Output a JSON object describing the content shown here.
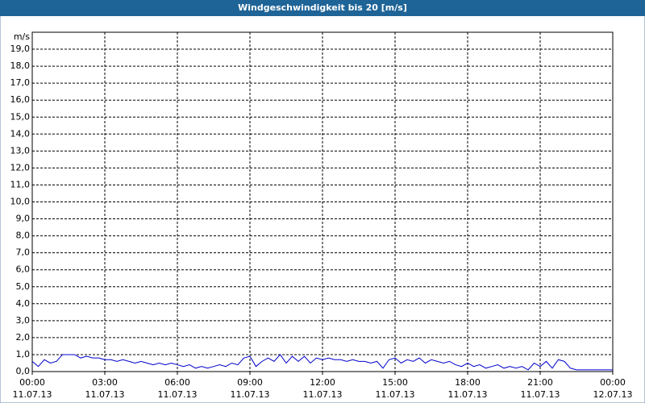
{
  "chart_data": {
    "type": "line",
    "title": "Windgeschwindigkeit bis 20 [m/s]",
    "y_label": "m/s",
    "ylim": [
      0,
      20
    ],
    "yticks": [
      {
        "value": 0,
        "label": "0,0"
      },
      {
        "value": 1,
        "label": "1,0"
      },
      {
        "value": 2,
        "label": "2,0"
      },
      {
        "value": 3,
        "label": "3,0"
      },
      {
        "value": 4,
        "label": "4,0"
      },
      {
        "value": 5,
        "label": "5,0"
      },
      {
        "value": 6,
        "label": "6,0"
      },
      {
        "value": 7,
        "label": "7,0"
      },
      {
        "value": 8,
        "label": "8,0"
      },
      {
        "value": 9,
        "label": "9,0"
      },
      {
        "value": 10,
        "label": "10,0"
      },
      {
        "value": 11,
        "label": "11,0"
      },
      {
        "value": 12,
        "label": "12,0"
      },
      {
        "value": 13,
        "label": "13,0"
      },
      {
        "value": 14,
        "label": "14,0"
      },
      {
        "value": 15,
        "label": "15,0"
      },
      {
        "value": 16,
        "label": "16,0"
      },
      {
        "value": 17,
        "label": "17,0"
      },
      {
        "value": 18,
        "label": "18,0"
      },
      {
        "value": 19,
        "label": "19,0"
      }
    ],
    "xlim": [
      0,
      24
    ],
    "xticks": [
      {
        "value": 0,
        "label": "00:00"
      },
      {
        "value": 3,
        "label": "03:00"
      },
      {
        "value": 6,
        "label": "06:00"
      },
      {
        "value": 9,
        "label": "09:00"
      },
      {
        "value": 12,
        "label": "12:00"
      },
      {
        "value": 15,
        "label": "15:00"
      },
      {
        "value": 18,
        "label": "18:00"
      },
      {
        "value": 21,
        "label": "21:00"
      },
      {
        "value": 24,
        "label": "00:00"
      }
    ],
    "xtick_dates": [
      "11.07.13",
      "11.07.13",
      "11.07.13",
      "11.07.13",
      "11.07.13",
      "11.07.13",
      "11.07.13",
      "11.07.13",
      "12.07.13"
    ],
    "grid": true,
    "x": [
      0,
      0.25,
      0.5,
      0.75,
      1,
      1.25,
      1.5,
      1.75,
      2,
      2.25,
      2.5,
      2.75,
      3,
      3.25,
      3.5,
      3.75,
      4,
      4.25,
      4.5,
      4.75,
      5,
      5.25,
      5.5,
      5.75,
      6,
      6.25,
      6.5,
      6.75,
      7,
      7.25,
      7.5,
      7.75,
      8,
      8.25,
      8.5,
      8.75,
      9,
      9.25,
      9.5,
      9.75,
      10,
      10.25,
      10.5,
      10.75,
      11,
      11.25,
      11.5,
      11.75,
      12,
      12.25,
      12.5,
      12.75,
      13,
      13.25,
      13.5,
      13.75,
      14,
      14.25,
      14.5,
      14.75,
      15,
      15.25,
      15.5,
      15.75,
      16,
      16.25,
      16.5,
      16.75,
      17,
      17.25,
      17.5,
      17.75,
      18,
      18.25,
      18.5,
      18.75,
      19,
      19.25,
      19.5,
      19.75,
      20,
      20.25,
      20.5,
      20.75,
      21,
      21.25,
      21.5,
      21.75,
      22,
      22.25,
      22.5,
      22.75,
      23,
      23.25,
      23.5,
      23.75,
      24
    ],
    "series": [
      {
        "color": "#0000cc",
        "values": [
          0.6,
          0.3,
          0.7,
          0.5,
          0.6,
          1.0,
          1.0,
          1.0,
          0.8,
          0.9,
          0.8,
          0.8,
          0.7,
          0.7,
          0.6,
          0.7,
          0.6,
          0.5,
          0.6,
          0.5,
          0.4,
          0.5,
          0.4,
          0.5,
          0.4,
          0.3,
          0.4,
          0.2,
          0.3,
          0.2,
          0.3,
          0.4,
          0.3,
          0.5,
          0.4,
          0.8,
          0.9,
          0.3,
          0.6,
          0.8,
          0.6,
          1.0,
          0.5,
          0.9,
          0.6,
          0.9,
          0.5,
          0.8,
          0.7,
          0.8,
          0.7,
          0.7,
          0.6,
          0.7,
          0.6,
          0.6,
          0.5,
          0.6,
          0.2,
          0.7,
          0.8,
          0.5,
          0.7,
          0.6,
          0.8,
          0.5,
          0.7,
          0.6,
          0.5,
          0.6,
          0.4,
          0.3,
          0.5,
          0.3,
          0.4,
          0.2,
          0.3,
          0.4,
          0.2,
          0.3,
          0.2,
          0.3,
          0.1,
          0.5,
          0.3,
          0.6,
          0.2,
          0.7,
          0.6,
          0.2,
          0.1,
          0.1,
          0.1,
          0.1,
          0.1,
          0.1,
          0.1
        ]
      }
    ]
  }
}
